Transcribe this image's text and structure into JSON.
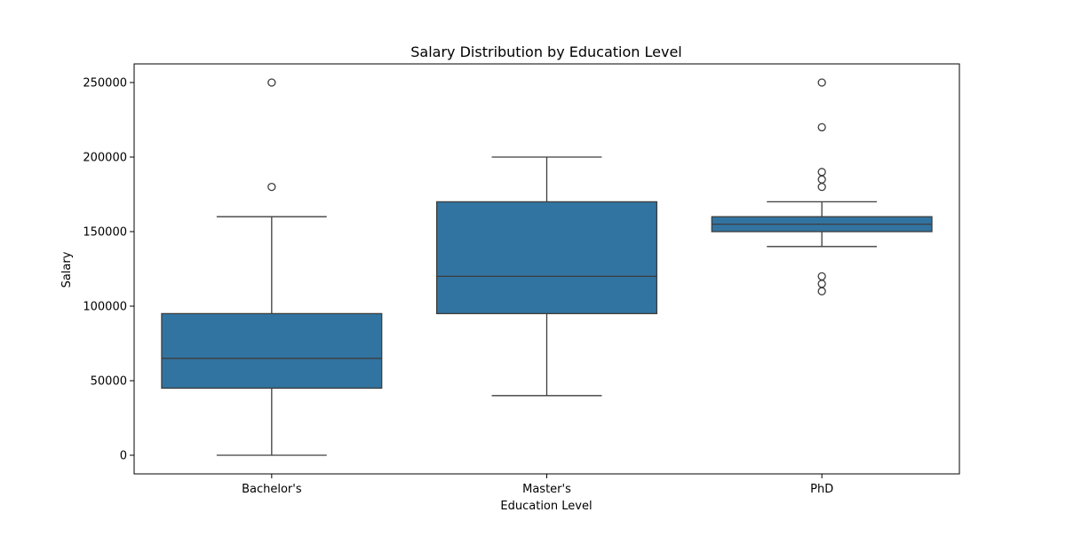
{
  "chart_data": {
    "type": "box",
    "title": "Salary Distribution by Education Level",
    "xlabel": "Education Level",
    "ylabel": "Salary",
    "categories": [
      "Bachelor's",
      "Master's",
      "PhD"
    ],
    "ylim": [
      -12500,
      262500
    ],
    "yticks": [
      0,
      50000,
      100000,
      150000,
      200000,
      250000
    ],
    "ytick_labels": [
      "0",
      "50000",
      "100000",
      "150000",
      "200000",
      "250000"
    ],
    "grid": false,
    "colors": {
      "box_fill": "#3274a1",
      "line": "#3d3d3d",
      "outlier_edge": "#3d3d3d"
    },
    "boxes": [
      {
        "category": "Bachelor's",
        "whisker_low": 0,
        "q1": 45000,
        "median": 65000,
        "q3": 95000,
        "whisker_high": 160000,
        "outliers": [
          180000,
          250000
        ]
      },
      {
        "category": "Master's",
        "whisker_low": 40000,
        "q1": 95000,
        "median": 120000,
        "q3": 170000,
        "whisker_high": 200000,
        "outliers": []
      },
      {
        "category": "PhD",
        "whisker_low": 140000,
        "q1": 150000,
        "median": 155000,
        "q3": 160000,
        "whisker_high": 170000,
        "outliers": [
          110000,
          115000,
          120000,
          180000,
          185000,
          190000,
          220000,
          250000
        ]
      }
    ]
  }
}
